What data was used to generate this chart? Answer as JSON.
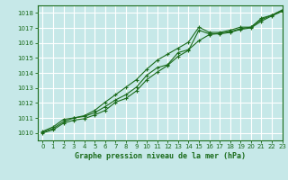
{
  "title": "Graphe pression niveau de la mer (hPa)",
  "xlim": [
    -0.5,
    23
  ],
  "ylim": [
    1009.5,
    1018.5
  ],
  "yticks": [
    1010,
    1011,
    1012,
    1013,
    1014,
    1015,
    1016,
    1017,
    1018
  ],
  "xticks": [
    0,
    1,
    2,
    3,
    4,
    5,
    6,
    7,
    8,
    9,
    10,
    11,
    12,
    13,
    14,
    15,
    16,
    17,
    18,
    19,
    20,
    21,
    22,
    23
  ],
  "background_color": "#c6e8e8",
  "grid_color": "#ffffff",
  "line_color": "#1a6b1a",
  "line1_x": [
    0,
    1,
    2,
    3,
    4,
    5,
    6,
    7,
    8,
    9,
    10,
    11,
    12,
    13,
    14,
    15,
    16,
    17,
    18,
    19,
    20,
    21,
    22,
    23
  ],
  "line1_y": [
    1010.1,
    1010.4,
    1010.9,
    1011.0,
    1011.1,
    1011.35,
    1011.75,
    1012.2,
    1012.55,
    1013.05,
    1013.85,
    1014.35,
    1014.55,
    1015.35,
    1015.55,
    1016.15,
    1016.55,
    1016.65,
    1016.75,
    1016.95,
    1017.05,
    1017.55,
    1017.85,
    1018.15
  ],
  "line2_x": [
    0,
    1,
    2,
    3,
    4,
    5,
    6,
    7,
    8,
    9,
    10,
    11,
    12,
    13,
    14,
    15,
    16,
    17,
    18,
    19,
    20,
    21,
    22,
    23
  ],
  "line2_y": [
    1010.05,
    1010.3,
    1010.75,
    1011.0,
    1011.15,
    1011.5,
    1012.05,
    1012.55,
    1013.05,
    1013.55,
    1014.25,
    1014.85,
    1015.25,
    1015.65,
    1016.05,
    1017.05,
    1016.7,
    1016.7,
    1016.85,
    1017.05,
    1017.05,
    1017.65,
    1017.85,
    1018.2
  ],
  "line3_x": [
    0,
    1,
    2,
    3,
    4,
    5,
    6,
    7,
    8,
    9,
    10,
    11,
    12,
    13,
    14,
    15,
    16,
    17,
    18,
    19,
    20,
    21,
    22,
    23
  ],
  "line3_y": [
    1010.0,
    1010.2,
    1010.65,
    1010.85,
    1010.95,
    1011.2,
    1011.5,
    1012.05,
    1012.3,
    1012.8,
    1013.55,
    1014.05,
    1014.5,
    1015.1,
    1015.5,
    1016.85,
    1016.6,
    1016.6,
    1016.7,
    1016.9,
    1017.0,
    1017.45,
    1017.8,
    1018.1
  ],
  "tick_fontsize": 5,
  "xlabel_fontsize": 6
}
